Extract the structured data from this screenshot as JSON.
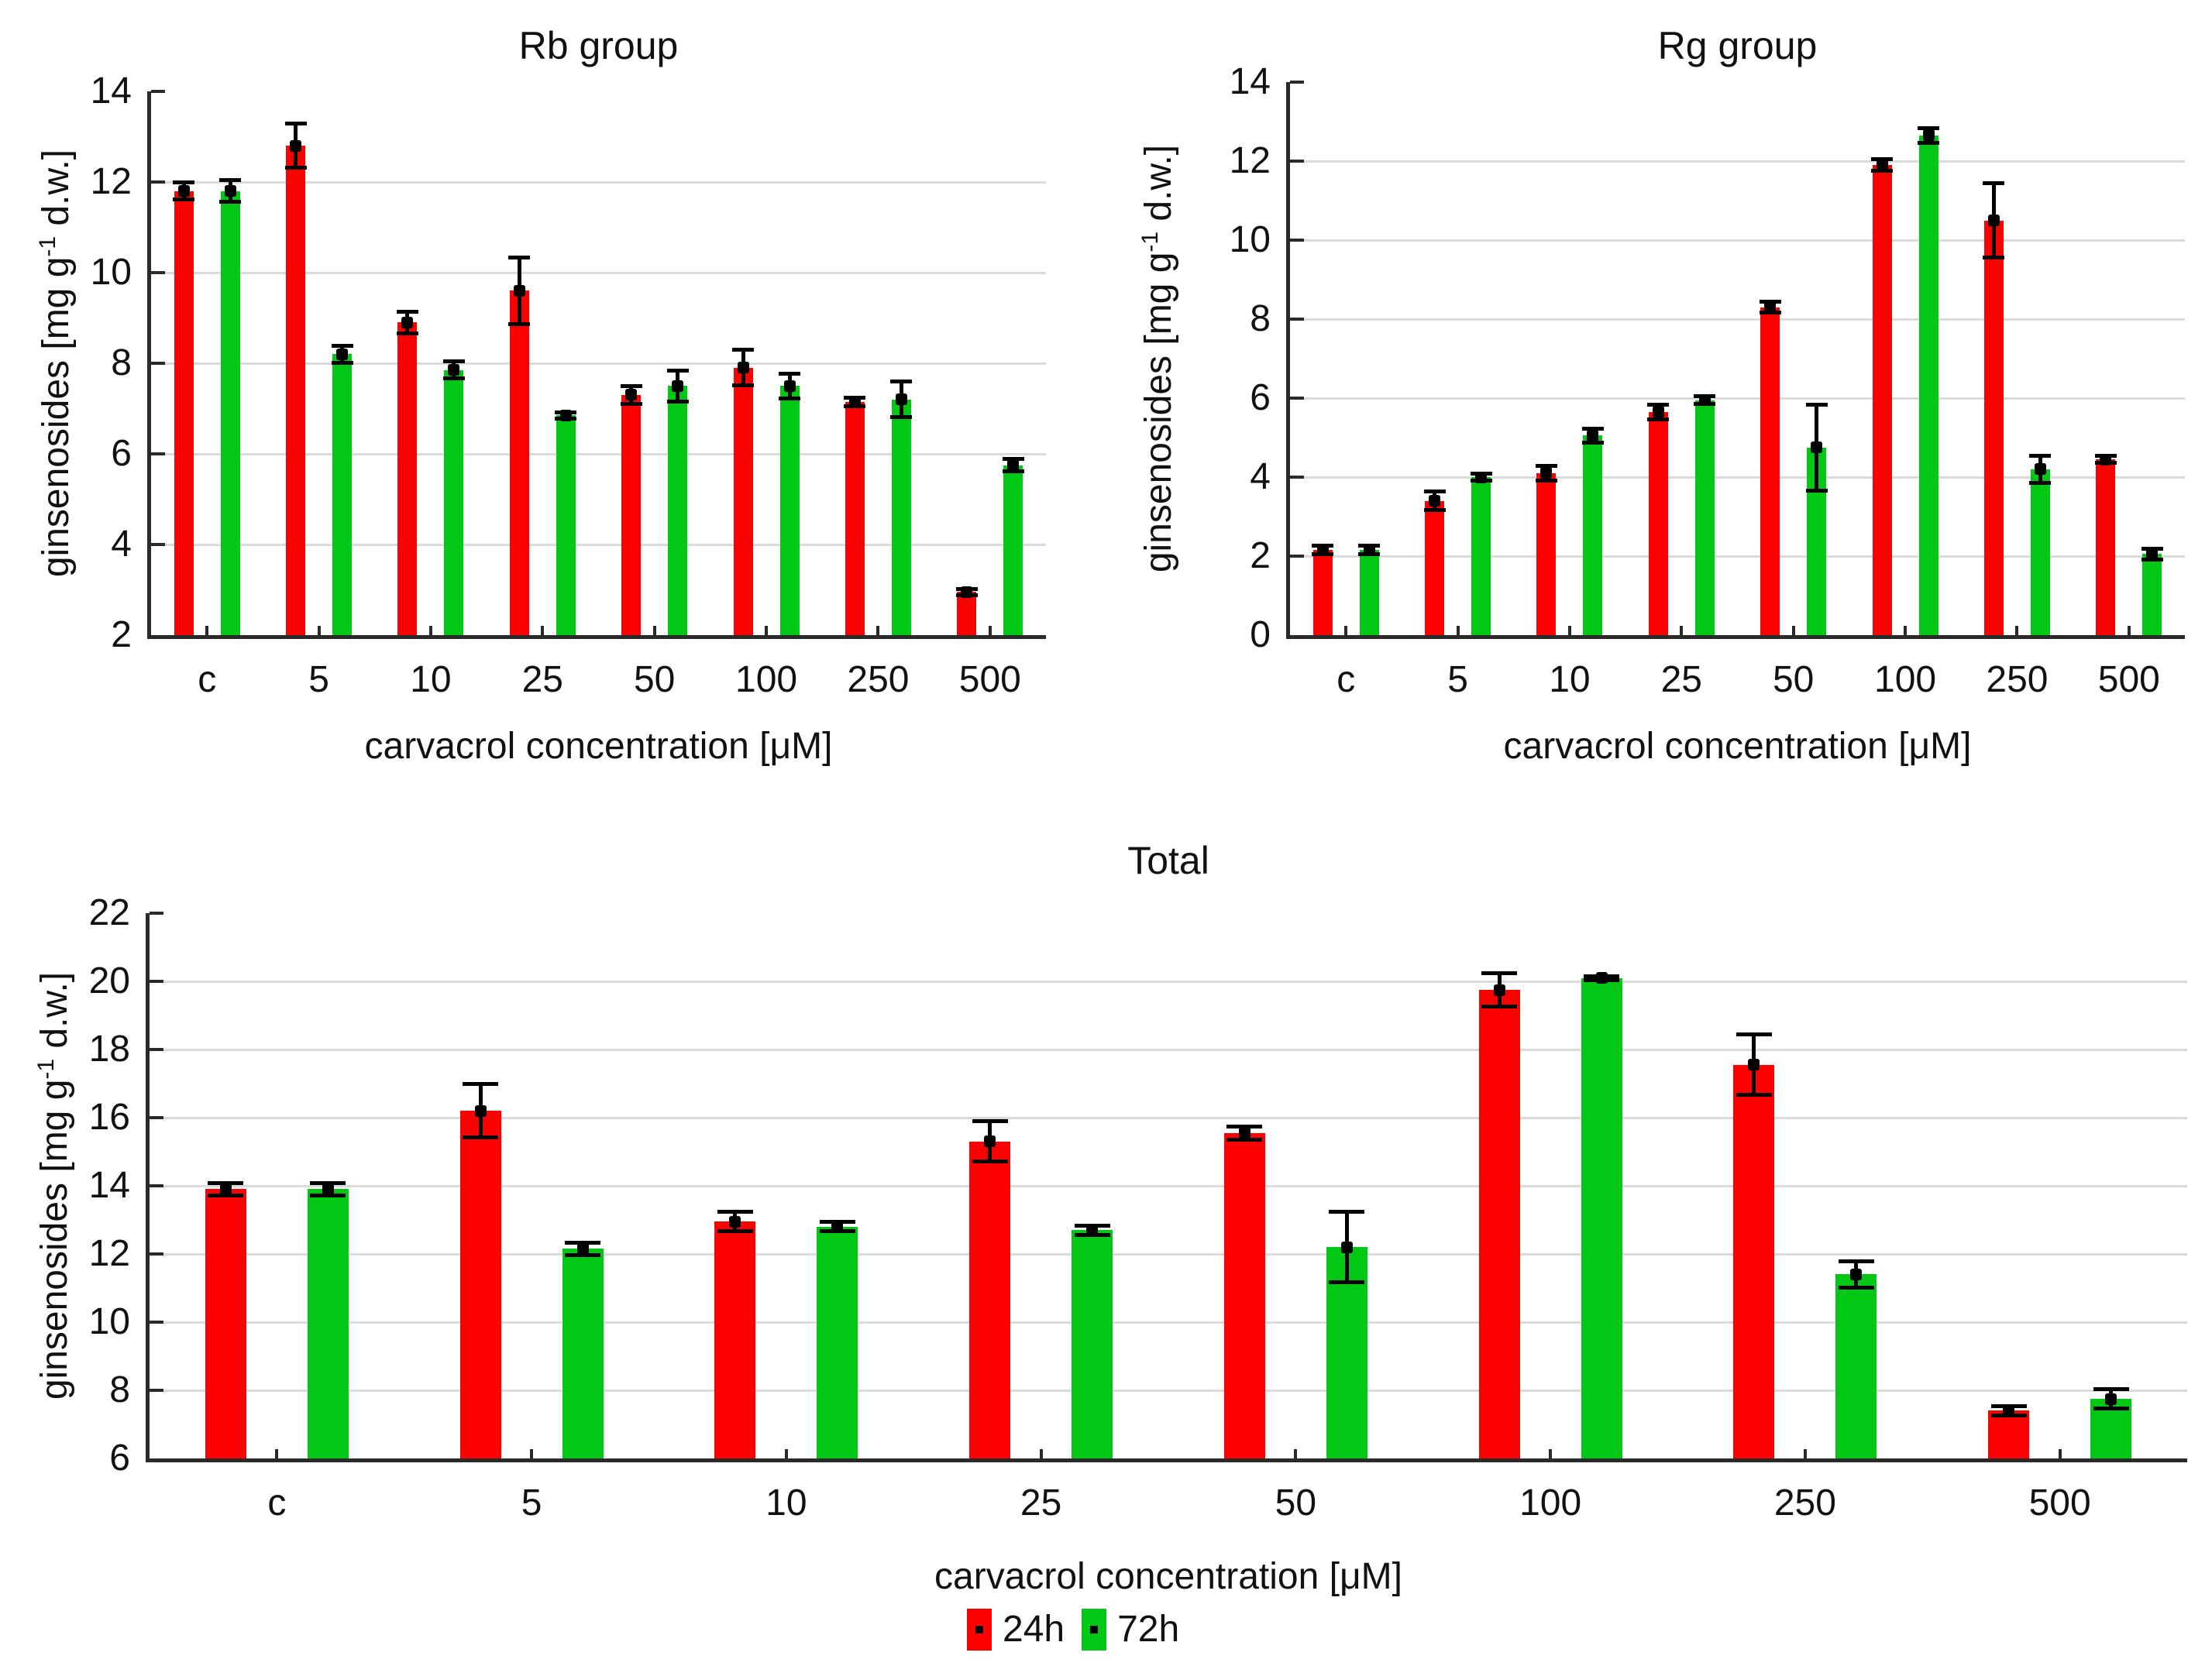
{
  "figure": {
    "background": "#ffffff"
  },
  "legend": {
    "items": [
      {
        "label": "24h",
        "color": "#ff0000"
      },
      {
        "label": "72h",
        "color": "#00c814"
      }
    ]
  },
  "style": {
    "axis_color": "#2a2a2a",
    "grid_color": "#dbdbdb",
    "error_color": "#000000",
    "bar_red": "#ff0000",
    "bar_green": "#00c814"
  },
  "chart_data": [
    {
      "type": "bar",
      "title": "Rb group",
      "ylabel": {
        "pre": "ginsenosides [mg g",
        "sup": "-1",
        "post": " d.w.]"
      },
      "xlabel": "carvacrol concentration [μM]",
      "ylim": [
        2,
        14
      ],
      "ystep": 2,
      "grid": true,
      "legend_position": "none",
      "categories": [
        "c",
        "5",
        "10",
        "25",
        "50",
        "100",
        "250",
        "500"
      ],
      "series": [
        {
          "name": "24h",
          "color": "#ff0000",
          "values": [
            11.8,
            12.8,
            8.9,
            9.6,
            7.3,
            7.9,
            7.15,
            2.95
          ],
          "errors": [
            0.2,
            0.5,
            0.25,
            0.75,
            0.2,
            0.4,
            0.1,
            0.08
          ]
        },
        {
          "name": "72h",
          "color": "#00c814",
          "values": [
            11.8,
            8.2,
            7.85,
            6.85,
            7.5,
            7.5,
            7.2,
            5.75
          ],
          "errors": [
            0.25,
            0.2,
            0.2,
            0.08,
            0.35,
            0.28,
            0.4,
            0.15
          ]
        }
      ]
    },
    {
      "type": "bar",
      "title": "Rg group",
      "ylabel": {
        "pre": "ginsenosides [mg g",
        "sup": "-1",
        "post": " d.w.]"
      },
      "xlabel": "carvacrol concentration [μM]",
      "ylim": [
        0,
        14
      ],
      "ystep": 2,
      "grid": true,
      "legend_position": "none",
      "categories": [
        "c",
        "5",
        "10",
        "25",
        "50",
        "100",
        "250",
        "500"
      ],
      "series": [
        {
          "name": "24h",
          "color": "#ff0000",
          "values": [
            2.15,
            3.4,
            4.1,
            5.65,
            8.3,
            11.9,
            10.5,
            4.45
          ],
          "errors": [
            0.12,
            0.25,
            0.2,
            0.2,
            0.15,
            0.15,
            0.95,
            0.1
          ]
        },
        {
          "name": "72h",
          "color": "#00c814",
          "values": [
            2.15,
            4.0,
            5.05,
            5.95,
            4.75,
            12.65,
            4.2,
            2.05
          ],
          "errors": [
            0.12,
            0.1,
            0.18,
            0.1,
            1.1,
            0.2,
            0.35,
            0.15
          ]
        }
      ]
    },
    {
      "type": "bar",
      "title": "Total",
      "ylabel": {
        "pre": "ginsenosides [mg g",
        "sup": "-1",
        "post": " d.w.]"
      },
      "xlabel": "carvacrol concentration [μM]",
      "ylim": [
        6,
        22
      ],
      "ystep": 2,
      "grid": true,
      "legend_position": "bottom",
      "categories": [
        "c",
        "5",
        "10",
        "25",
        "50",
        "100",
        "250",
        "500"
      ],
      "series": [
        {
          "name": "24h",
          "color": "#ff0000",
          "values": [
            13.9,
            16.2,
            12.95,
            15.3,
            15.55,
            19.75,
            17.55,
            7.4
          ],
          "errors": [
            0.2,
            0.8,
            0.3,
            0.6,
            0.2,
            0.5,
            0.9,
            0.15
          ]
        },
        {
          "name": "72h",
          "color": "#00c814",
          "values": [
            13.9,
            12.15,
            12.8,
            12.7,
            12.2,
            20.1,
            11.4,
            7.75
          ],
          "errors": [
            0.2,
            0.2,
            0.15,
            0.15,
            1.05,
            0.07,
            0.4,
            0.3
          ]
        }
      ]
    }
  ]
}
